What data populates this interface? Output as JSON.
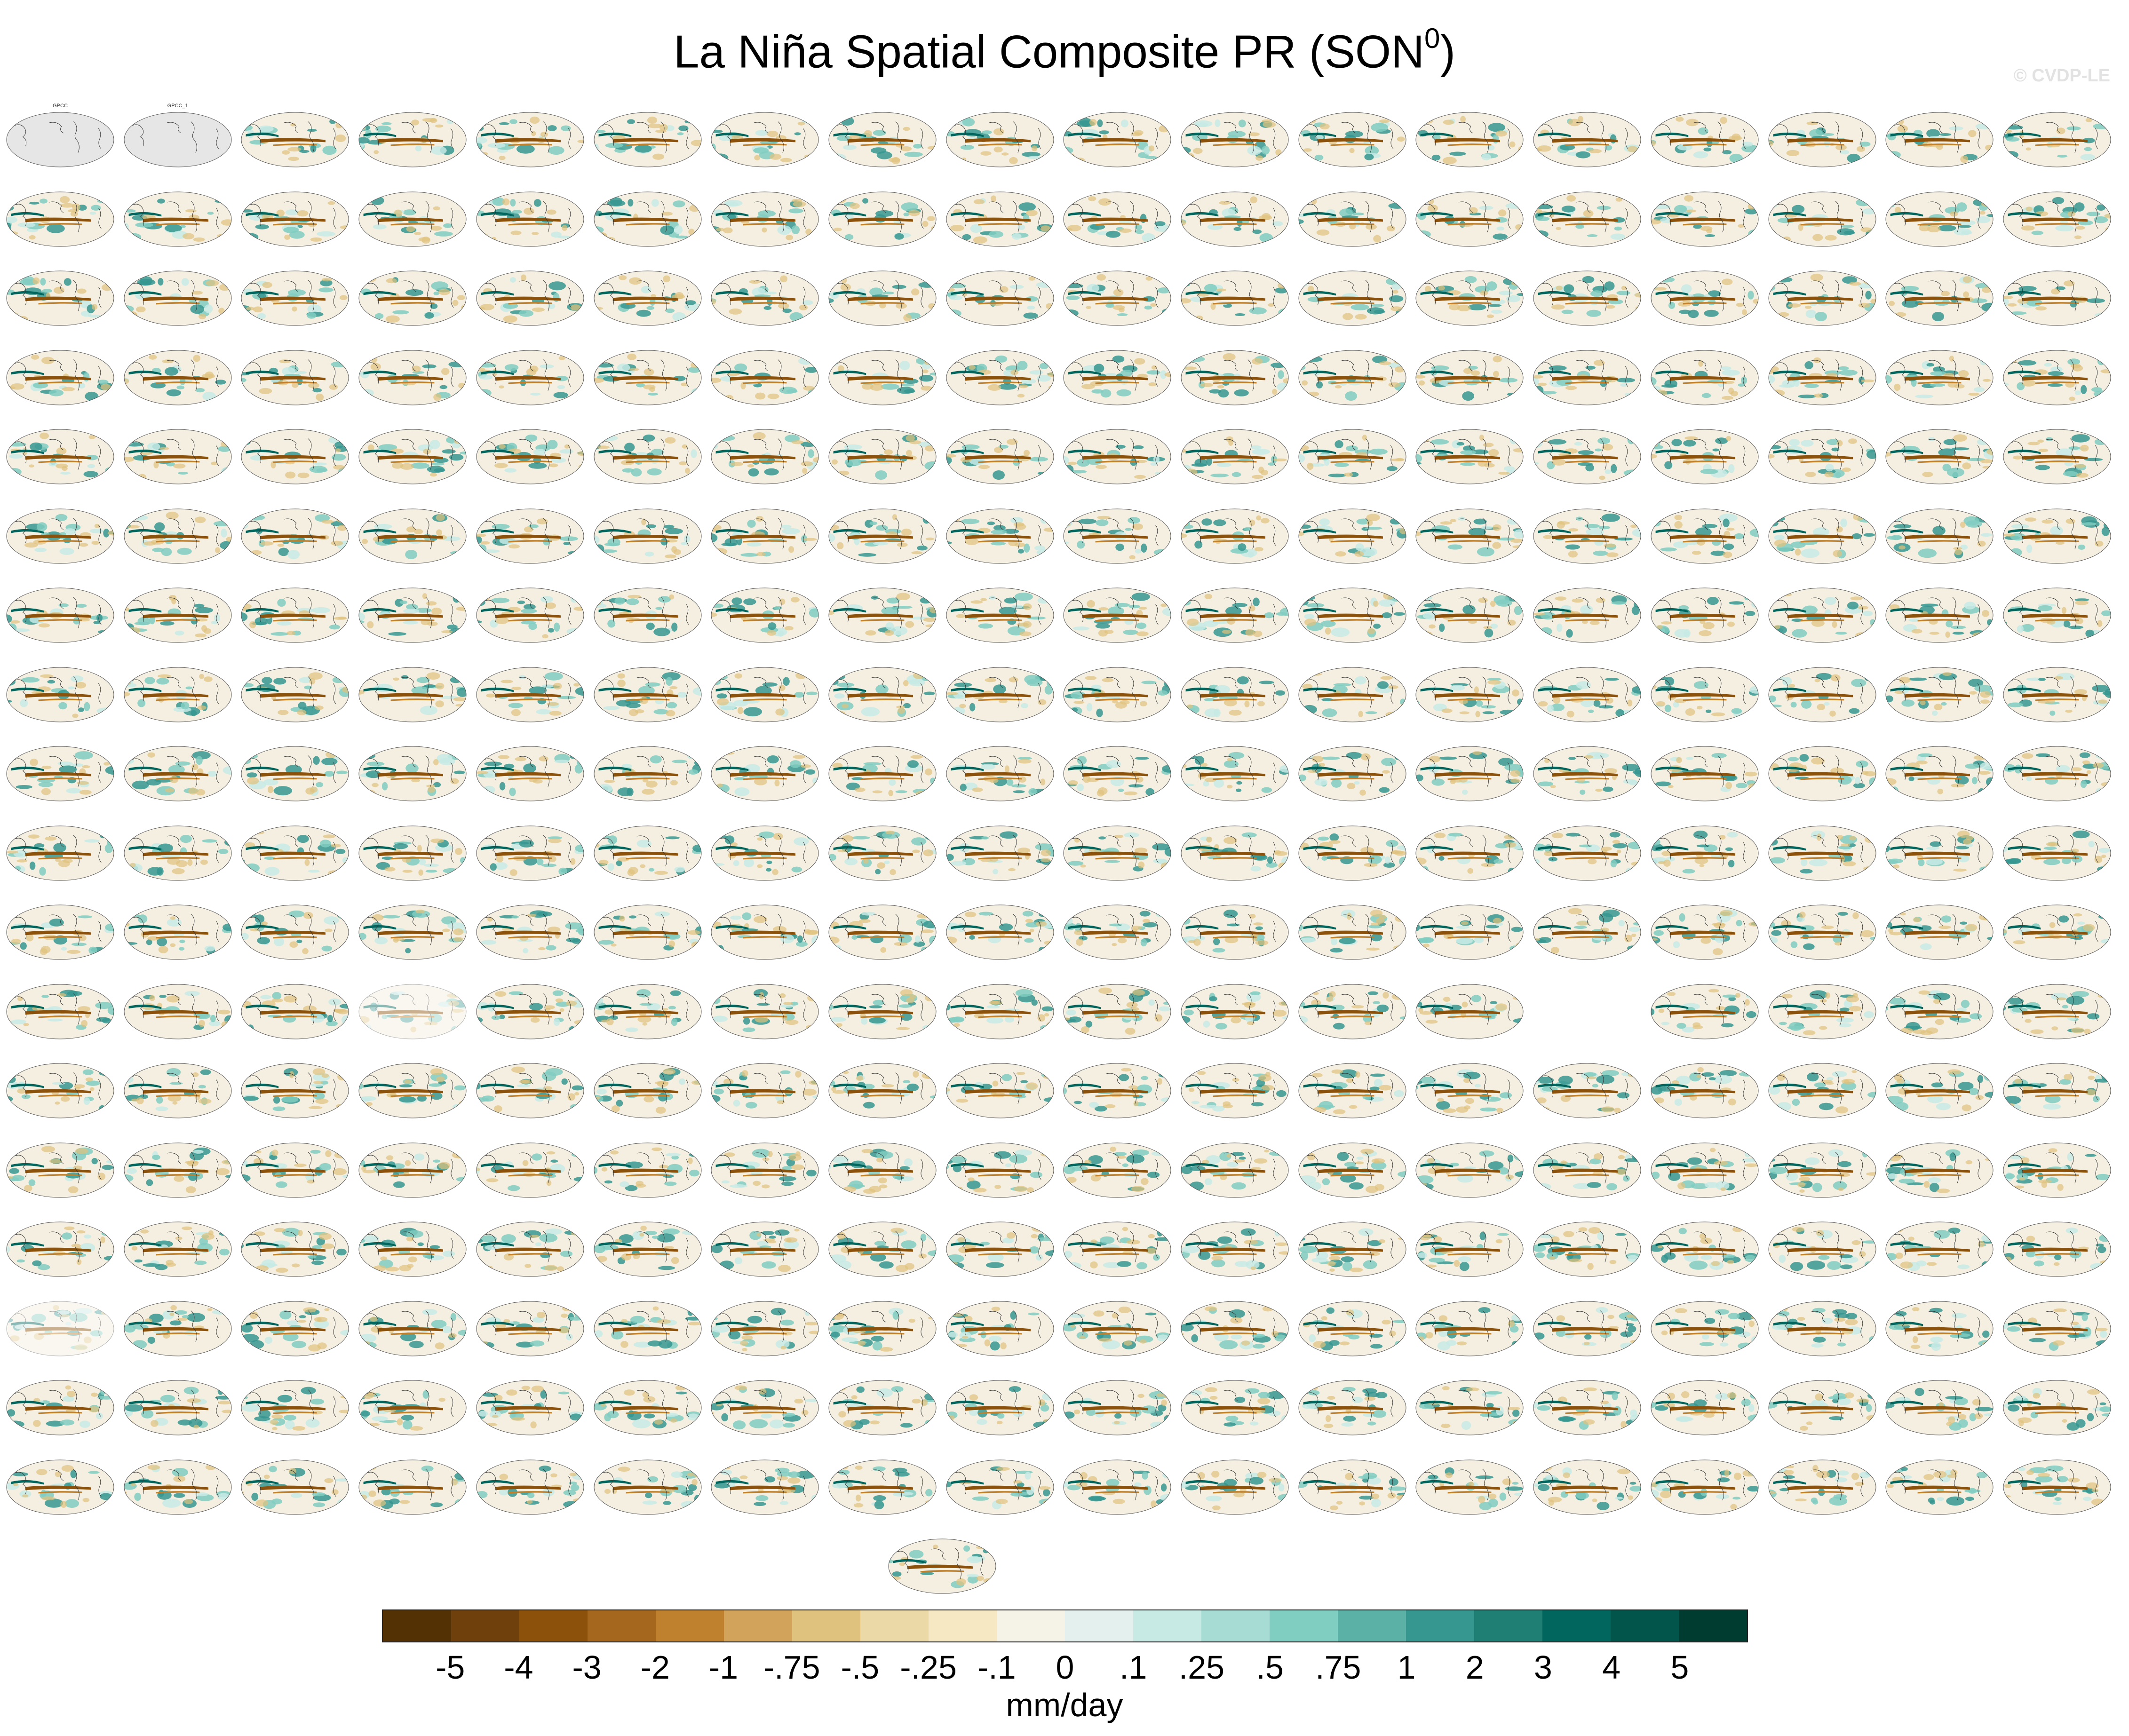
{
  "title": "La Niña Spatial Composite PR (SON",
  "title_superscript": "0",
  "title_close": ")",
  "watermark": "© CVDP-LE",
  "chart_data": {
    "type": "heatmap",
    "title": "La Niña Spatial Composite PR (SON0)",
    "panel_grid": {
      "rows": 18,
      "columns": 18
    },
    "panel_labels_row1": [
      "GPCC",
      "GPCC_1"
    ],
    "colorbar": {
      "units": "mm/day",
      "tick_labels": [
        "-5",
        "-4",
        "-3",
        "-2",
        "-1",
        "-.75",
        "-.5",
        "-.25",
        "-.1",
        "0",
        ".1",
        ".25",
        ".5",
        ".75",
        "1",
        "2",
        "3",
        "4",
        "5"
      ],
      "colors": [
        "#543005",
        "#6f400c",
        "#8c510a",
        "#a5661e",
        "#bf812d",
        "#d1a35b",
        "#dfc27d",
        "#ecd9a8",
        "#f6e8c3",
        "#f5f2e8",
        "#e4f0ee",
        "#c7eae5",
        "#a6dcd3",
        "#80cdc1",
        "#5cb1a6",
        "#35978f",
        "#1f7f74",
        "#01665e",
        "#01554b",
        "#003c30"
      ]
    }
  }
}
